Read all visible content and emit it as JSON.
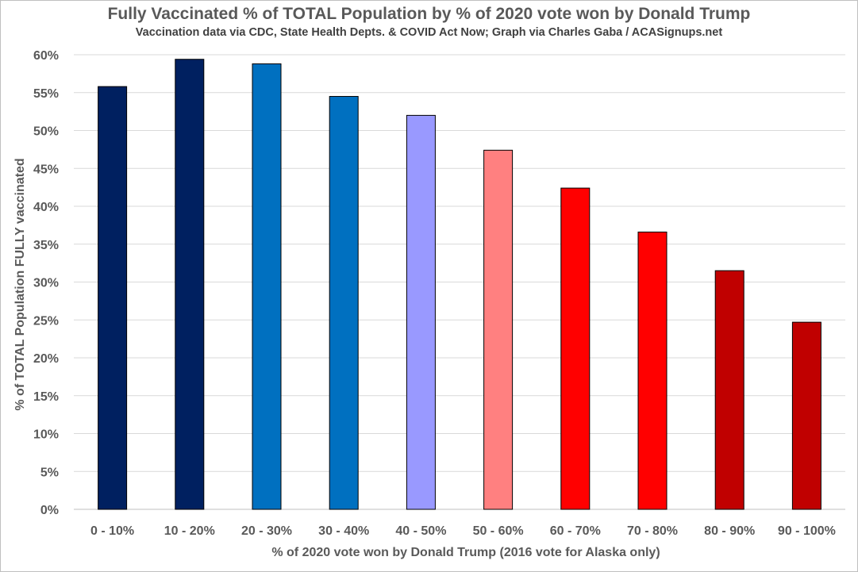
{
  "chart_data": {
    "type": "bar",
    "title": "Fully Vaccinated % of TOTAL Population by % of 2020 vote won by Donald Trump",
    "subtitle": "Vaccination data via CDC, State Health Depts. & COVID Act Now; Graph via Charles Gaba / ACASignups.net",
    "xlabel": "% of 2020 vote won by Donald Trump (2016 vote for Alaska only)",
    "ylabel": "% of TOTAL Population FULLY vaccinated",
    "categories": [
      "0 - 10%",
      "10 - 20%",
      "20 - 30%",
      "30 - 40%",
      "40 - 50%",
      "50 - 60%",
      "60 - 70%",
      "70 - 80%",
      "80 - 90%",
      "90 - 100%"
    ],
    "values": [
      55.8,
      59.4,
      58.8,
      54.5,
      52.0,
      47.4,
      42.4,
      36.6,
      31.5,
      24.7
    ],
    "bar_colors": [
      "#002060",
      "#002060",
      "#0070c0",
      "#0070c0",
      "#9999ff",
      "#ff8080",
      "#ff0000",
      "#ff0000",
      "#c00000",
      "#c00000"
    ],
    "ylim": [
      0,
      60
    ],
    "yticks": [
      0,
      5,
      10,
      15,
      20,
      25,
      30,
      35,
      40,
      45,
      50,
      55,
      60
    ],
    "ytick_labels": [
      "0%",
      "5%",
      "10%",
      "15%",
      "20%",
      "25%",
      "30%",
      "35%",
      "40%",
      "45%",
      "50%",
      "55%",
      "60%"
    ],
    "grid": true,
    "legend": "none"
  }
}
